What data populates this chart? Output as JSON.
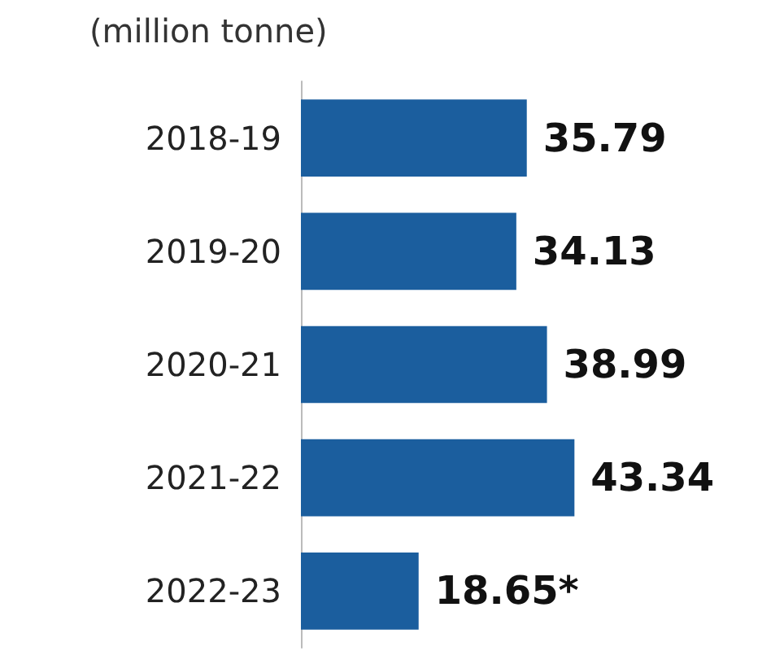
{
  "chart_data": {
    "type": "bar",
    "orientation": "horizontal",
    "subtitle": "(million tonne)",
    "categories": [
      "2018-19",
      "2019-20",
      "2020-21",
      "2021-22",
      "2022-23"
    ],
    "values": [
      35.79,
      34.13,
      38.99,
      43.34,
      18.65
    ],
    "value_labels": [
      "35.79",
      "34.13",
      "38.99",
      "43.34",
      "18.65*"
    ],
    "color": "#1b5e9e",
    "tick_labels": "y"
  }
}
